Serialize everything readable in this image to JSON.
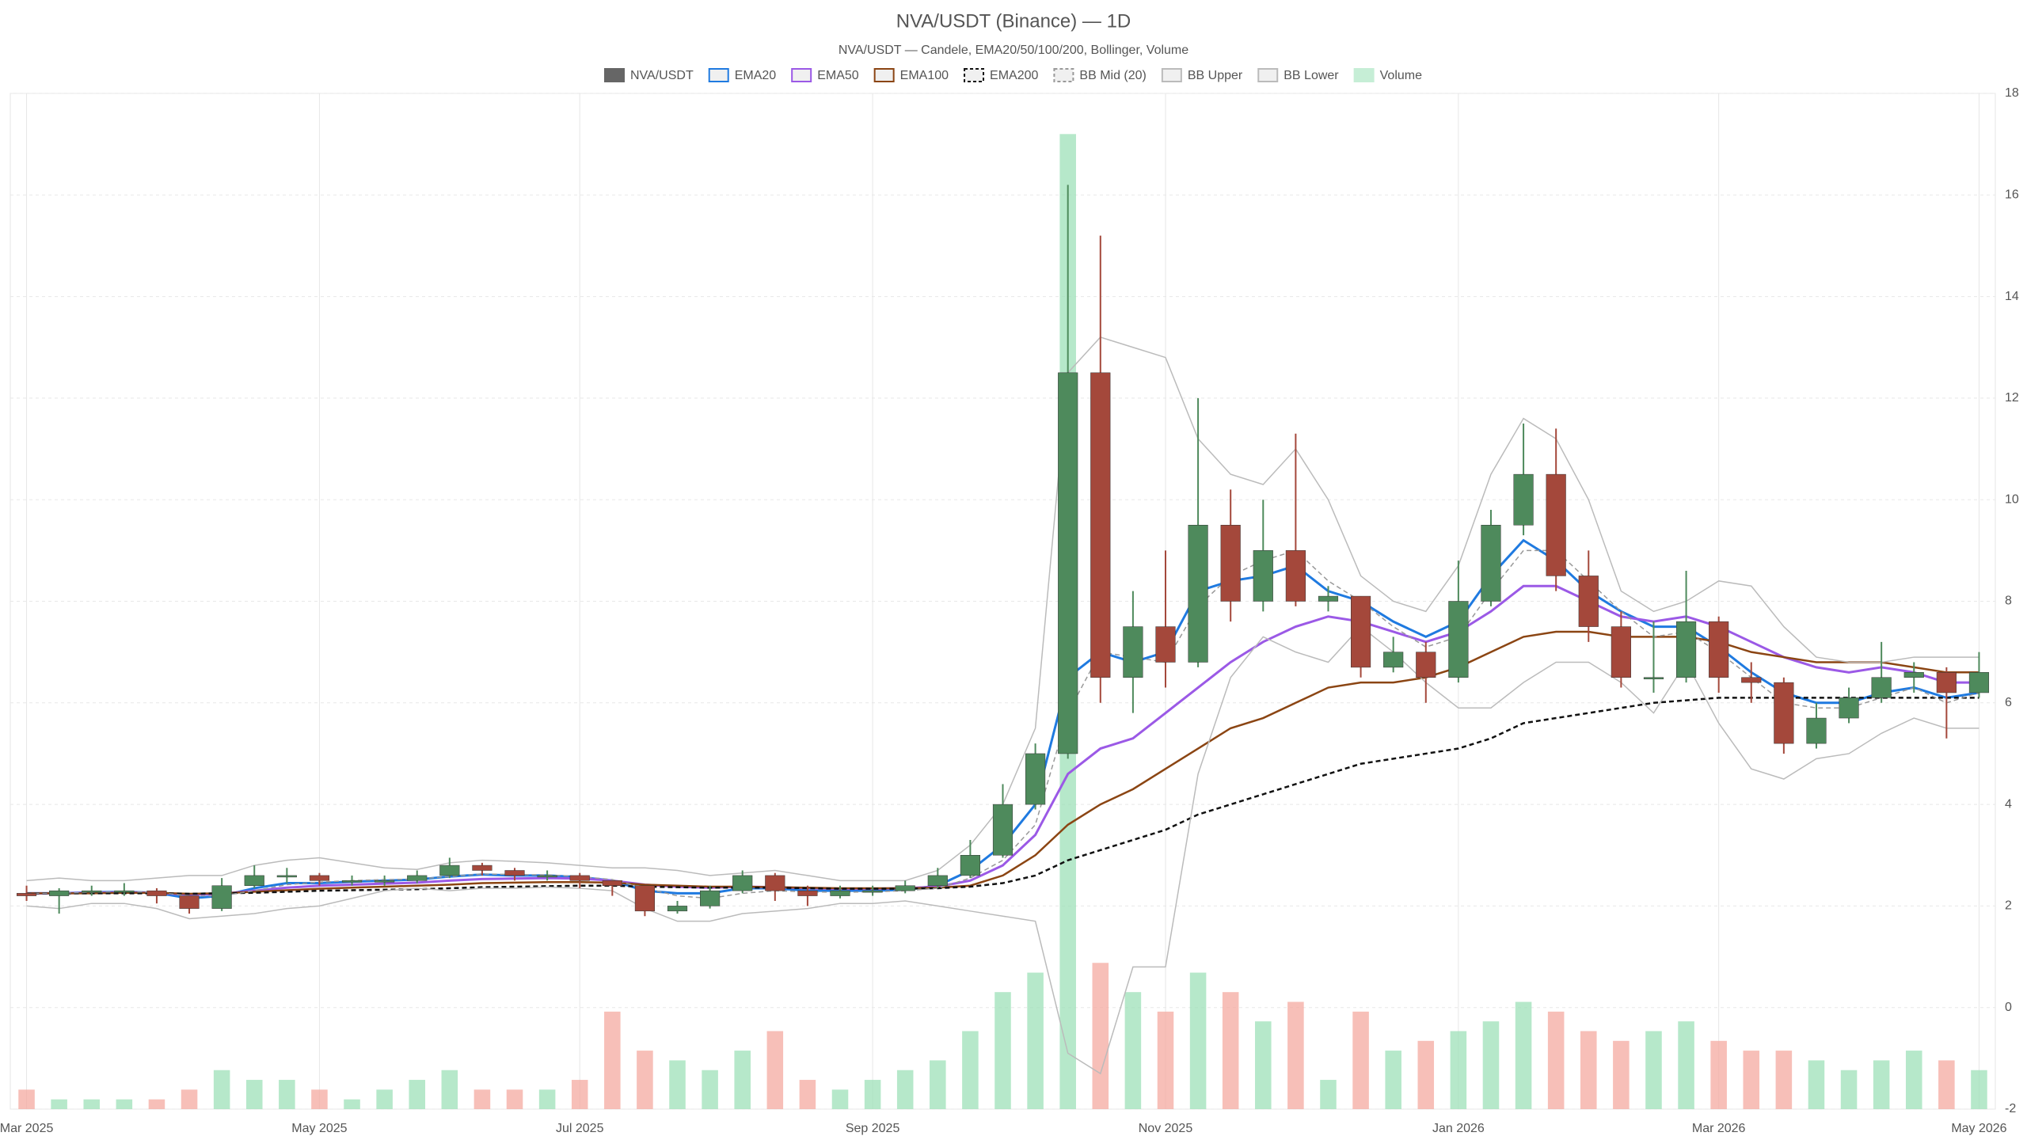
{
  "chart_data": {
    "type": "candlestick",
    "title": "NVA/USDT (Binance) — 1D",
    "subtitle": "NVA/USDT — Candele, EMA20/50/100/200, Bollinger, Volume",
    "name": "NVA/USDT",
    "legend_color": "#666666",
    "up_color": "#4e8a5c",
    "down_color": "#a4483b",
    "categories": [
      "Mar 2025",
      null,
      null,
      null,
      null,
      null,
      null,
      null,
      null,
      "May 2025",
      null,
      null,
      null,
      null,
      null,
      null,
      null,
      "Jul 2025",
      null,
      null,
      null,
      null,
      null,
      null,
      null,
      null,
      "Sep 2025",
      null,
      null,
      null,
      null,
      null,
      null,
      null,
      null,
      "Nov 2025",
      null,
      null,
      null,
      null,
      null,
      null,
      null,
      null,
      "Jan 2026",
      null,
      null,
      null,
      null,
      null,
      null,
      null,
      "Mar 2026",
      null,
      null,
      null,
      null,
      null,
      null,
      null,
      "May 2026"
    ],
    "open": [
      2.25,
      2.2,
      2.3,
      2.3,
      2.3,
      2.2,
      1.95,
      2.4,
      2.6,
      2.6,
      2.5,
      2.5,
      2.5,
      2.6,
      2.8,
      2.7,
      2.6,
      2.6,
      2.5,
      2.4,
      1.9,
      2.0,
      2.3,
      2.6,
      2.3,
      2.2,
      2.3,
      2.3,
      2.4,
      2.6,
      3.0,
      4.0,
      5.0,
      12.5,
      6.5,
      7.5,
      6.8,
      9.5,
      8.0,
      9.0,
      8.0,
      8.1,
      6.7,
      7.0,
      6.5,
      8.0,
      9.5,
      10.5,
      8.5,
      7.5,
      6.5,
      6.5,
      7.6,
      6.5,
      6.4,
      5.2,
      5.7,
      6.1,
      6.5,
      6.6,
      6.2
    ],
    "high": [
      2.4,
      2.35,
      2.4,
      2.45,
      2.35,
      2.2,
      2.55,
      2.8,
      2.75,
      2.65,
      2.6,
      2.6,
      2.7,
      2.95,
      2.85,
      2.75,
      2.7,
      2.65,
      2.5,
      2.4,
      2.1,
      2.4,
      2.7,
      2.65,
      2.4,
      2.4,
      2.4,
      2.5,
      2.75,
      3.3,
      4.4,
      5.2,
      16.2,
      15.2,
      8.2,
      9.0,
      12.0,
      10.2,
      10.0,
      11.3,
      8.3,
      8.1,
      7.3,
      7.2,
      8.8,
      9.8,
      11.5,
      11.4,
      9.0,
      7.8,
      7.6,
      8.6,
      7.7,
      6.8,
      6.5,
      6.0,
      6.3,
      7.2,
      6.8,
      6.7,
      7.0
    ],
    "low": [
      2.1,
      1.85,
      2.2,
      2.2,
      2.05,
      1.85,
      1.9,
      2.35,
      2.45,
      2.4,
      2.4,
      2.4,
      2.45,
      2.55,
      2.6,
      2.5,
      2.5,
      2.35,
      2.2,
      1.8,
      1.85,
      1.95,
      2.25,
      2.1,
      2.0,
      2.15,
      2.2,
      2.25,
      2.35,
      2.55,
      2.95,
      3.9,
      4.9,
      6.0,
      5.8,
      6.3,
      6.7,
      7.6,
      7.8,
      7.9,
      7.8,
      6.5,
      6.6,
      6.0,
      6.4,
      7.9,
      9.3,
      8.2,
      7.2,
      6.3,
      6.2,
      6.4,
      6.2,
      6.0,
      5.0,
      5.1,
      5.6,
      6.0,
      6.2,
      5.3,
      6.1
    ],
    "close": [
      2.2,
      2.3,
      2.3,
      2.3,
      2.2,
      1.95,
      2.4,
      2.6,
      2.6,
      2.5,
      2.5,
      2.5,
      2.6,
      2.8,
      2.7,
      2.6,
      2.6,
      2.5,
      2.4,
      1.9,
      2.0,
      2.3,
      2.6,
      2.3,
      2.2,
      2.3,
      2.3,
      2.4,
      2.6,
      3.0,
      4.0,
      5.0,
      12.5,
      6.5,
      7.5,
      6.8,
      9.5,
      8.0,
      9.0,
      8.0,
      8.1,
      6.7,
      7.0,
      6.5,
      8.0,
      9.5,
      10.5,
      8.5,
      7.5,
      6.5,
      6.5,
      7.6,
      6.5,
      6.4,
      5.2,
      5.7,
      6.1,
      6.5,
      6.6,
      6.2,
      6.6
    ],
    "volume": {
      "name": "Volume",
      "color": "#c6eed6",
      "up_color": "#9ee0b8",
      "down_color": "#f4a9a0",
      "lim": [
        0,
        100
      ],
      "values": [
        2,
        1,
        1,
        1,
        1,
        2,
        4,
        3,
        3,
        2,
        1,
        2,
        3,
        4,
        2,
        2,
        2,
        3,
        10,
        6,
        5,
        4,
        6,
        8,
        3,
        2,
        3,
        4,
        5,
        8,
        12,
        14,
        100,
        15,
        12,
        10,
        14,
        12,
        9,
        11,
        3,
        10,
        6,
        7,
        8,
        9,
        11,
        10,
        8,
        7,
        8,
        9,
        7,
        6,
        6,
        5,
        4,
        5,
        6,
        5,
        4
      ]
    },
    "series": [
      {
        "name": "EMA20",
        "color": "#1f7ae0",
        "width": 3,
        "dash": false,
        "values": [
          2.25,
          2.25,
          2.27,
          2.28,
          2.26,
          2.15,
          2.2,
          2.35,
          2.45,
          2.45,
          2.48,
          2.5,
          2.52,
          2.58,
          2.62,
          2.6,
          2.6,
          2.57,
          2.5,
          2.3,
          2.25,
          2.25,
          2.35,
          2.35,
          2.3,
          2.3,
          2.3,
          2.32,
          2.4,
          2.7,
          3.2,
          4.0,
          6.5,
          7.0,
          6.8,
          7.0,
          8.2,
          8.4,
          8.5,
          8.7,
          8.2,
          8.0,
          7.6,
          7.3,
          7.6,
          8.5,
          9.2,
          8.8,
          8.2,
          7.8,
          7.5,
          7.5,
          7.1,
          6.6,
          6.2,
          6.0,
          6.0,
          6.2,
          6.3,
          6.1,
          6.2
        ]
      },
      {
        "name": "EMA50",
        "color": "#9b59e6",
        "width": 3,
        "dash": false,
        "values": [
          2.25,
          2.25,
          2.26,
          2.27,
          2.26,
          2.22,
          2.24,
          2.3,
          2.36,
          2.4,
          2.42,
          2.44,
          2.46,
          2.5,
          2.53,
          2.54,
          2.55,
          2.54,
          2.5,
          2.42,
          2.38,
          2.36,
          2.38,
          2.37,
          2.35,
          2.34,
          2.34,
          2.35,
          2.38,
          2.5,
          2.8,
          3.4,
          4.6,
          5.1,
          5.3,
          5.8,
          6.3,
          6.8,
          7.2,
          7.5,
          7.7,
          7.6,
          7.4,
          7.2,
          7.4,
          7.8,
          8.3,
          8.3,
          8.0,
          7.7,
          7.6,
          7.7,
          7.5,
          7.2,
          6.9,
          6.7,
          6.6,
          6.7,
          6.6,
          6.4,
          6.4
        ]
      },
      {
        "name": "EMA100",
        "color": "#8b4513",
        "width": 2.5,
        "dash": false,
        "values": [
          2.25,
          2.25,
          2.25,
          2.26,
          2.26,
          2.24,
          2.25,
          2.28,
          2.31,
          2.34,
          2.36,
          2.38,
          2.4,
          2.42,
          2.45,
          2.46,
          2.47,
          2.47,
          2.46,
          2.42,
          2.4,
          2.38,
          2.38,
          2.37,
          2.36,
          2.35,
          2.35,
          2.35,
          2.36,
          2.4,
          2.6,
          3.0,
          3.6,
          4.0,
          4.3,
          4.7,
          5.1,
          5.5,
          5.7,
          6.0,
          6.3,
          6.4,
          6.4,
          6.5,
          6.7,
          7.0,
          7.3,
          7.4,
          7.4,
          7.3,
          7.3,
          7.3,
          7.2,
          7.0,
          6.9,
          6.8,
          6.8,
          6.8,
          6.7,
          6.6,
          6.6
        ]
      },
      {
        "name": "EMA200",
        "color": "#111111",
        "width": 2.5,
        "dash": true,
        "values": [
          2.25,
          2.25,
          2.25,
          2.25,
          2.25,
          2.24,
          2.25,
          2.26,
          2.28,
          2.3,
          2.31,
          2.32,
          2.33,
          2.35,
          2.37,
          2.38,
          2.39,
          2.4,
          2.4,
          2.38,
          2.37,
          2.36,
          2.36,
          2.36,
          2.35,
          2.34,
          2.34,
          2.34,
          2.35,
          2.38,
          2.45,
          2.6,
          2.9,
          3.1,
          3.3,
          3.5,
          3.8,
          4.0,
          4.2,
          4.4,
          4.6,
          4.8,
          4.9,
          5.0,
          5.1,
          5.3,
          5.6,
          5.7,
          5.8,
          5.9,
          6.0,
          6.05,
          6.1,
          6.1,
          6.1,
          6.1,
          6.1,
          6.1,
          6.1,
          6.1,
          6.1
        ]
      },
      {
        "name": "BB Mid (20)",
        "color": "#999999",
        "width": 1.5,
        "dash": true,
        "values": [
          2.25,
          2.25,
          2.27,
          2.28,
          2.27,
          2.2,
          2.2,
          2.3,
          2.42,
          2.47,
          2.5,
          2.52,
          2.53,
          2.58,
          2.63,
          2.62,
          2.61,
          2.58,
          2.52,
          2.35,
          2.2,
          2.15,
          2.25,
          2.3,
          2.28,
          2.27,
          2.28,
          2.3,
          2.35,
          2.55,
          2.9,
          3.6,
          5.8,
          7.0,
          6.9,
          6.8,
          7.9,
          8.5,
          8.8,
          9.0,
          8.4,
          8.0,
          7.5,
          7.1,
          7.3,
          8.2,
          9.0,
          9.0,
          8.4,
          7.8,
          7.3,
          7.4,
          7.0,
          6.5,
          6.0,
          5.9,
          5.9,
          6.1,
          6.3,
          6.0,
          6.2
        ]
      },
      {
        "name": "BB Upper",
        "color": "#bbbbbb",
        "width": 1.5,
        "dash": false,
        "values": [
          2.5,
          2.55,
          2.5,
          2.5,
          2.55,
          2.6,
          2.6,
          2.8,
          2.9,
          2.95,
          2.85,
          2.75,
          2.72,
          2.85,
          2.9,
          2.88,
          2.85,
          2.8,
          2.75,
          2.75,
          2.7,
          2.6,
          2.65,
          2.7,
          2.6,
          2.5,
          2.5,
          2.5,
          2.7,
          3.2,
          4.0,
          5.5,
          12.5,
          13.2,
          13.0,
          12.8,
          11.2,
          10.5,
          10.3,
          11.0,
          10.0,
          8.5,
          8.0,
          7.8,
          8.7,
          10.5,
          11.6,
          11.2,
          10.0,
          8.2,
          7.8,
          8.0,
          8.4,
          8.3,
          7.5,
          6.9,
          6.8,
          6.8,
          6.9,
          6.9,
          6.9
        ]
      },
      {
        "name": "BB Lower",
        "color": "#bbbbbb",
        "width": 1.5,
        "dash": false,
        "values": [
          2.0,
          1.95,
          2.05,
          2.05,
          1.95,
          1.75,
          1.8,
          1.85,
          1.95,
          2.0,
          2.15,
          2.3,
          2.35,
          2.3,
          2.35,
          2.35,
          2.37,
          2.35,
          2.3,
          1.95,
          1.7,
          1.7,
          1.85,
          1.9,
          1.95,
          2.05,
          2.05,
          2.1,
          2.0,
          1.9,
          1.8,
          1.7,
          -0.9,
          -1.3,
          0.8,
          0.8,
          4.6,
          6.5,
          7.3,
          7.0,
          6.8,
          7.5,
          7.0,
          6.4,
          5.9,
          5.9,
          6.4,
          6.8,
          6.8,
          6.4,
          5.8,
          6.8,
          5.6,
          4.7,
          4.5,
          4.9,
          5.0,
          5.4,
          5.7,
          5.5,
          5.5
        ]
      }
    ],
    "ylim": [
      -2,
      18
    ],
    "yticks": [
      -2,
      0,
      2,
      4,
      6,
      8,
      10,
      12,
      14,
      16,
      18
    ],
    "grid": true
  }
}
